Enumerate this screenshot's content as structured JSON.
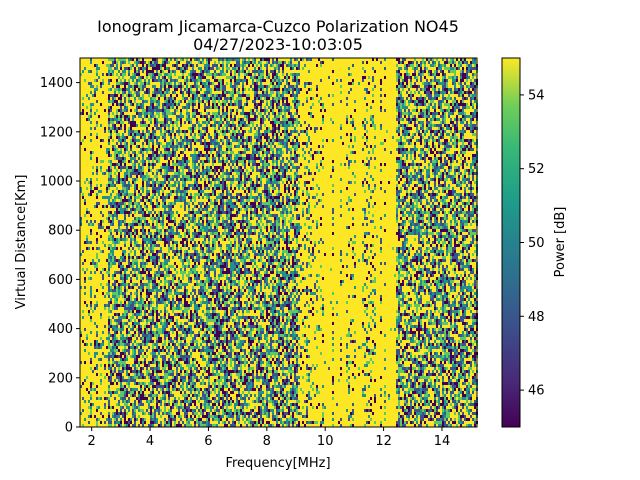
{
  "chart_data": {
    "type": "heatmap",
    "title_line1": "Ionogram Jicamarca-Cuzco Polarization NO45",
    "title_line2": "04/27/2023-10:03:05",
    "xlabel": "Frequency[MHz]",
    "ylabel": "Virtual Distance[Km]",
    "xlim": [
      1.6,
      15.2
    ],
    "ylim": [
      0,
      1500
    ],
    "xticks": [
      2,
      4,
      6,
      8,
      10,
      12,
      14
    ],
    "yticks": [
      0,
      200,
      400,
      600,
      800,
      1000,
      1200,
      1400
    ],
    "colorbar": {
      "label": "Power [dB]",
      "range": [
        45,
        55
      ],
      "ticks": [
        46,
        48,
        50,
        52,
        54
      ],
      "colormap": "viridis"
    },
    "description_bands": [
      {
        "x": [
          1.6,
          2.5
        ],
        "level": "mostly high"
      },
      {
        "x": [
          2.5,
          9.0
        ],
        "level": "mixed noisy"
      },
      {
        "x": [
          9.0,
          9.9
        ],
        "level": "mostly high"
      },
      {
        "x": [
          9.9,
          12.4
        ],
        "level": "uniform high"
      },
      {
        "x": [
          12.4,
          15.2
        ],
        "level": "mixed noisy"
      }
    ],
    "grid": false
  }
}
